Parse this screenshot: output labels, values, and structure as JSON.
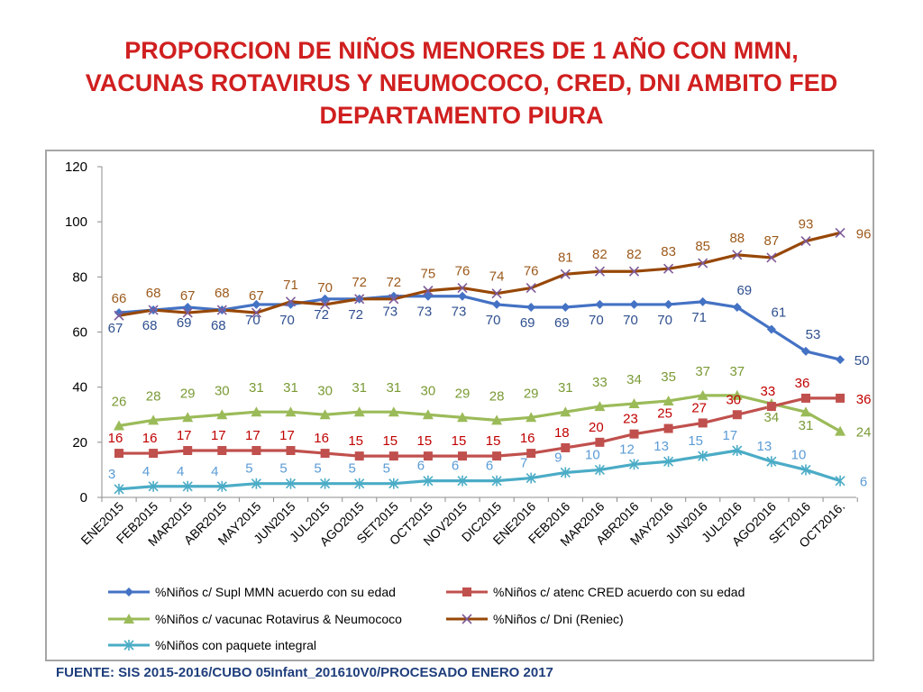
{
  "page": {
    "title_lines": [
      "PROPORCION DE NIÑOS MENORES DE 1 AÑO CON MMN,",
      "VACUNAS ROTAVIRUS Y NEUMOCOCO, CRED, DNI AMBITO FED",
      "DEPARTAMENTO PIURA"
    ],
    "footer": "FUENTE: SIS 2015-2016/CUBO 05Infant_201610V0/PROCESADO ENERO 2017"
  },
  "chart_data": {
    "type": "line",
    "title": "PROPORCION DE NIÑOS MENORES DE 1 AÑO CON MMN, VACUNAS ROTAVIRUS Y NEUMOCOCO, CRED, DNI AMBITO FED DEPARTAMENTO PIURA",
    "xlabel": "",
    "ylabel": "",
    "ylim": [
      0,
      120
    ],
    "yticks": [
      0,
      20,
      40,
      60,
      80,
      100,
      120
    ],
    "grid": false,
    "legend_position": "bottom",
    "categories": [
      "ENE2015",
      "FEB2015",
      "MAR2015",
      "ABR2015",
      "MAY2015",
      "JUN2015",
      "JUL2015",
      "AGO2015",
      "SET2015",
      "OCT2015",
      "NOV2015",
      "DIC2015",
      "ENE2016",
      "FEB2016",
      "MAR2016",
      "ABR2016",
      "MAY2016",
      "JUN2016",
      "JUL2016",
      "AGO2016",
      "SET2016",
      "OCT2016."
    ],
    "series": [
      {
        "name": "%Niños c/ Supl MMN acuerdo con su edad",
        "color": "#4472c4",
        "label_color": "#2f4f8f",
        "marker": "diamond",
        "values": [
          67,
          68,
          69,
          68,
          70,
          70,
          72,
          72,
          73,
          73,
          73,
          70,
          69,
          69,
          70,
          70,
          70,
          71,
          69,
          61,
          53,
          50
        ],
        "labels": [
          "67",
          "68",
          "69",
          "68",
          "70",
          "70",
          "72",
          "72",
          "73",
          "73",
          "73",
          "70",
          "69",
          "69",
          "70",
          "70",
          "70",
          "71",
          "69",
          "61",
          "53",
          "50"
        ]
      },
      {
        "name": "%Niños c/ atenc CRED acuerdo con su edad",
        "color": "#c0504d",
        "label_color": "#c00000",
        "marker": "square",
        "values": [
          16,
          16,
          17,
          17,
          17,
          17,
          16,
          15,
          15,
          15,
          15,
          15,
          16,
          18,
          20,
          23,
          25,
          27,
          30,
          33,
          36,
          36
        ],
        "labels": [
          "16",
          "16",
          "17",
          "17",
          "17",
          "17",
          "16",
          "15",
          "15",
          "15",
          "15",
          "15",
          "16",
          "18",
          "20",
          "23",
          "25",
          "27",
          "30",
          "33",
          "36",
          "36"
        ]
      },
      {
        "name": "%Niños c/ vacunac Rotavirus & Neumococo",
        "color": "#9bbb59",
        "label_color": "#7a9a35",
        "marker": "triangle",
        "values": [
          26,
          28,
          29,
          30,
          31,
          31,
          30,
          31,
          31,
          30,
          29,
          28,
          29,
          31,
          33,
          34,
          35,
          37,
          37,
          34,
          31,
          24
        ],
        "labels": [
          "26",
          "28",
          "29",
          "30",
          "31",
          "31",
          "30",
          "31",
          "31",
          "30",
          "29",
          "28",
          "29",
          "31",
          "33",
          "34",
          "35",
          "37",
          "37",
          "34",
          "31",
          "24"
        ]
      },
      {
        "name": "%Niños c/ Dni (Reniec)",
        "color": "#974706",
        "label_color": "#9c5a1c",
        "marker": "x",
        "values": [
          66,
          68,
          67,
          68,
          67,
          71,
          70,
          72,
          72,
          75,
          76,
          74,
          76,
          81,
          82,
          82,
          83,
          85,
          88,
          87,
          93,
          96
        ],
        "labels": [
          "66",
          "68",
          "67",
          "68",
          "67",
          "71",
          "70",
          "72",
          "72",
          "75",
          "76",
          "74",
          "76",
          "81",
          "82",
          "82",
          "83",
          "85",
          "88",
          "87",
          "93",
          "96"
        ]
      },
      {
        "name": "%Niños con paquete integral",
        "color": "#4bacc6",
        "label_color": "#5b9bd5",
        "marker": "star",
        "values": [
          3,
          4,
          4,
          4,
          5,
          5,
          5,
          5,
          5,
          6,
          6,
          6,
          7,
          9,
          10,
          12,
          13,
          15,
          17,
          13,
          10,
          6
        ],
        "labels": [
          "3",
          "4",
          "4",
          "4",
          "5",
          "5",
          "5",
          "5",
          "5",
          "6",
          "6",
          "6",
          "7",
          "9",
          "10",
          "12",
          "13",
          "15",
          "17",
          "13",
          "10",
          "6"
        ]
      }
    ]
  }
}
